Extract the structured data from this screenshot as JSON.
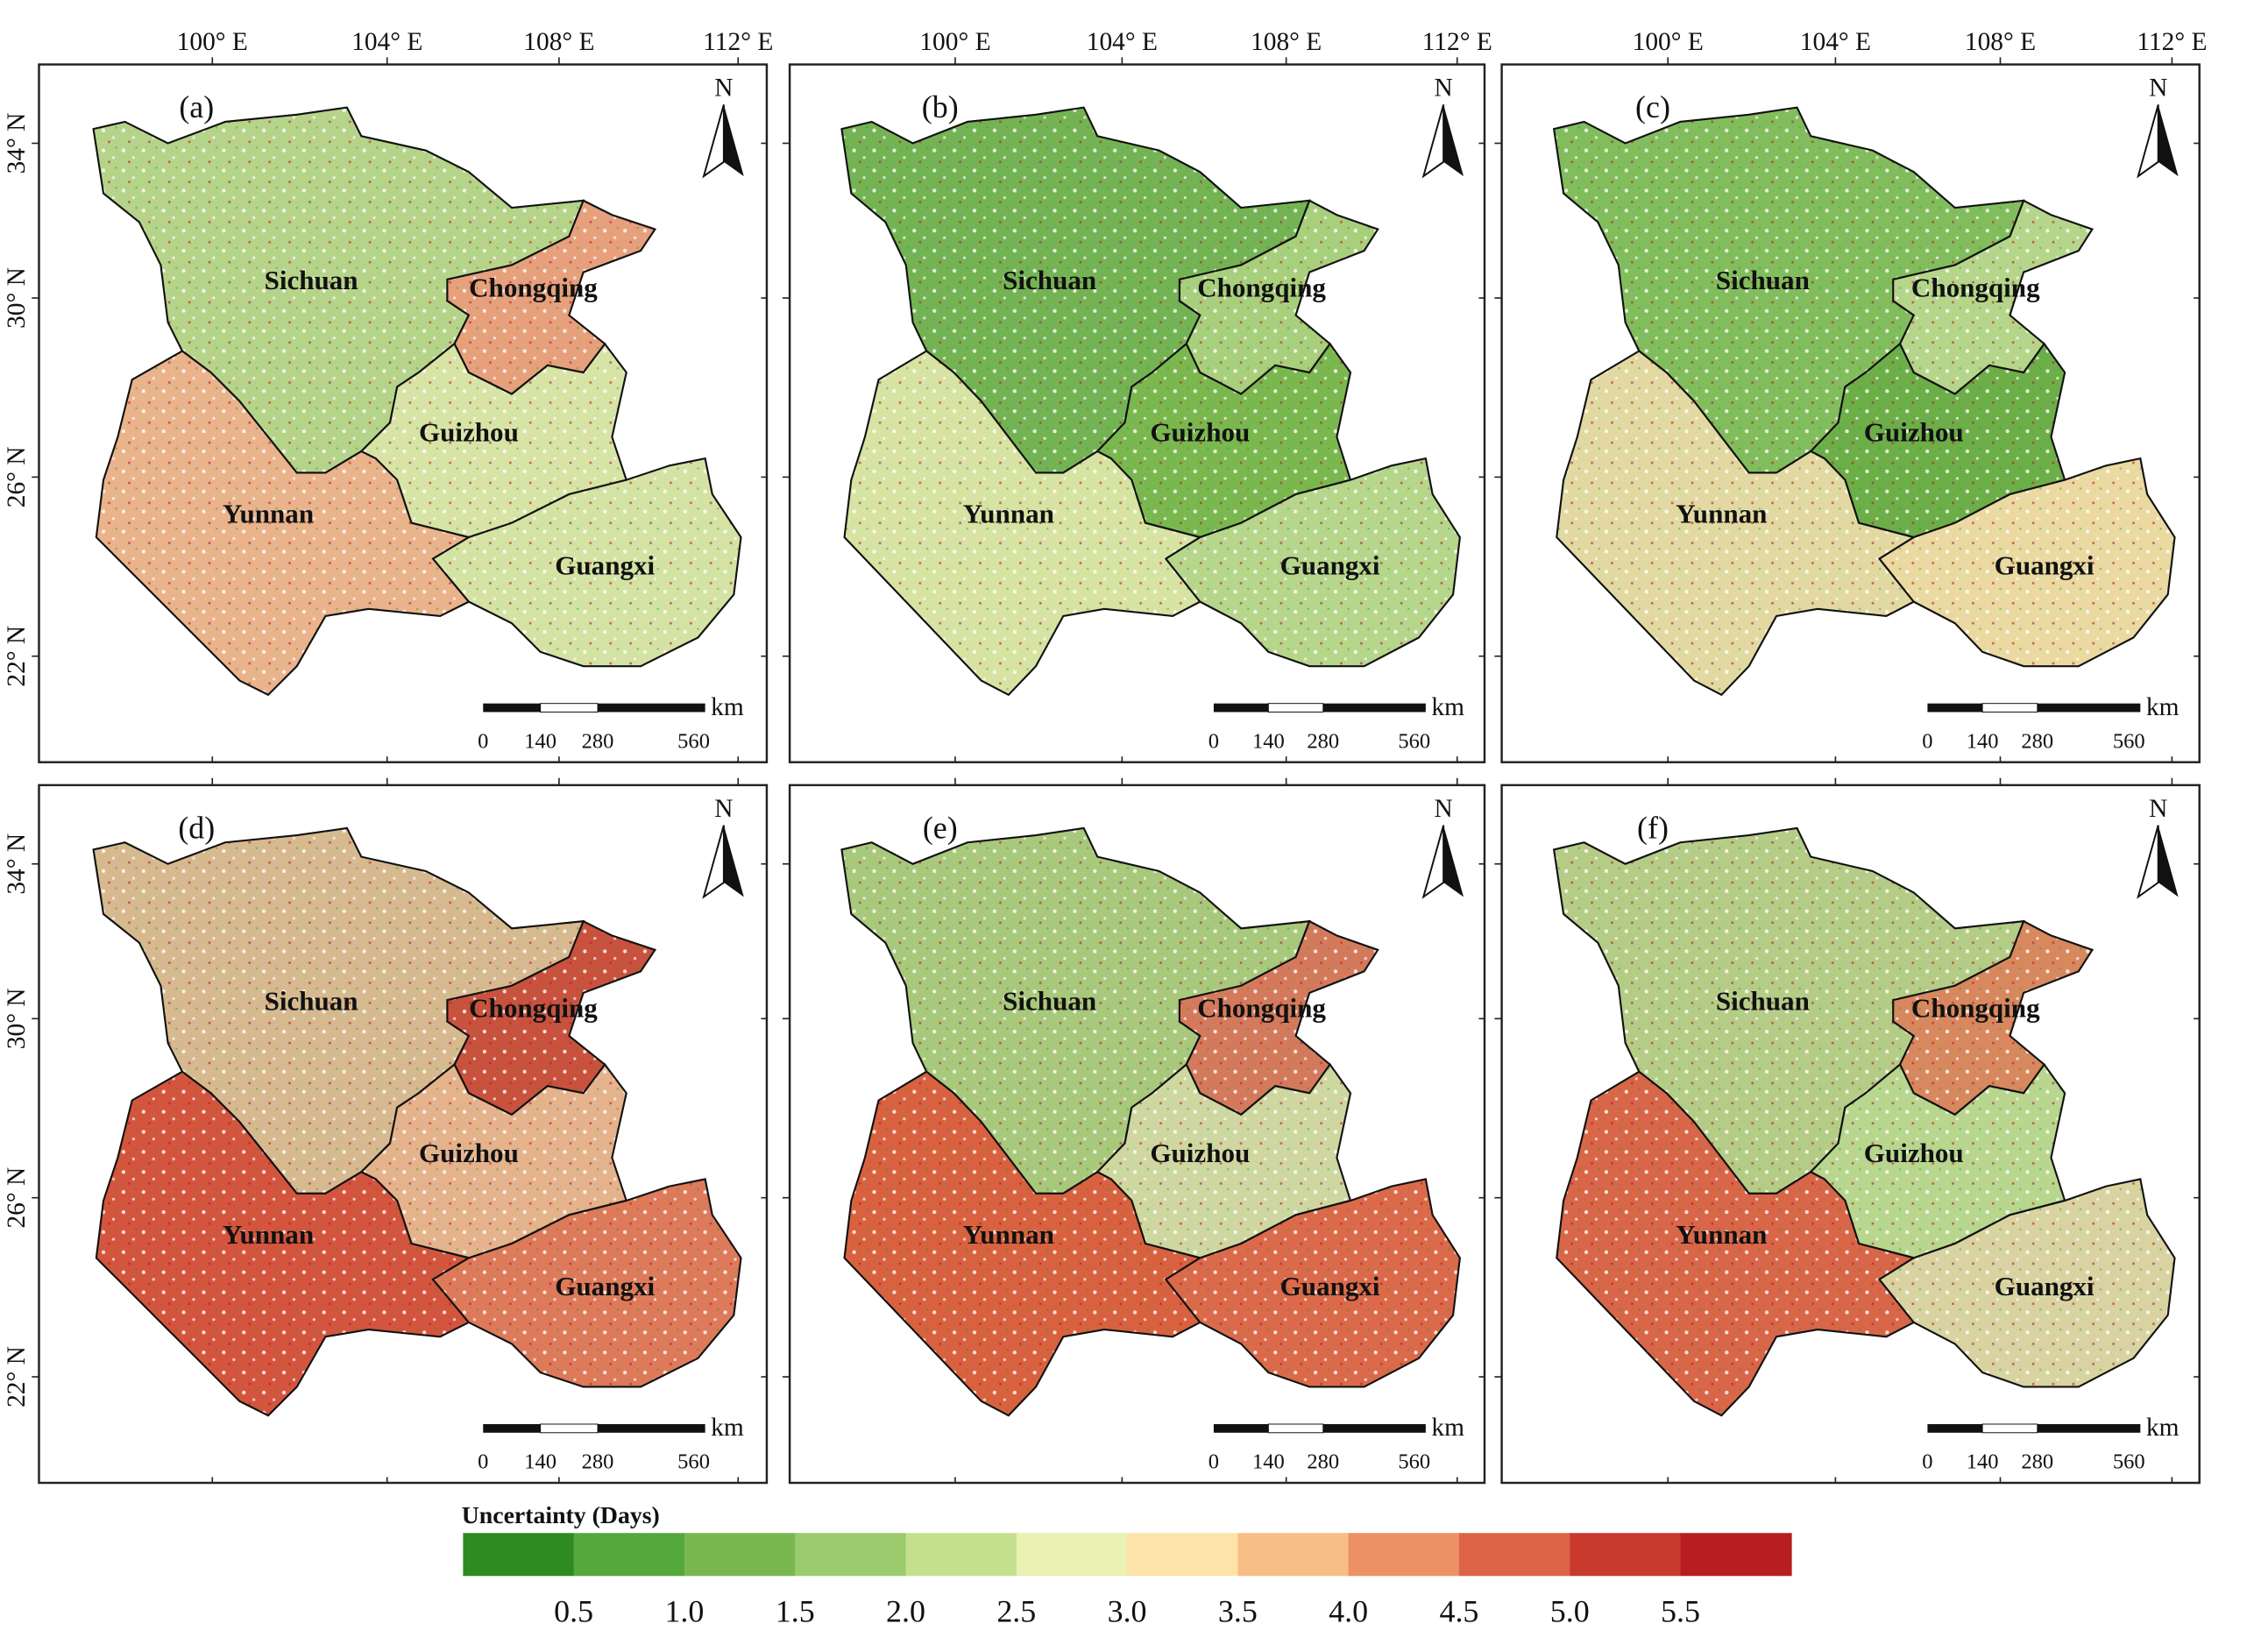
{
  "panels": [
    {
      "label": "(a)",
      "province_colors": [
        "#b5d48a",
        "#e6a07c",
        "#d8e3a6",
        "#e9b38c",
        "#d4e2a4"
      ]
    },
    {
      "label": "(b)",
      "province_colors": [
        "#74b354",
        "#a8cf7c",
        "#7ab84f",
        "#d7e3a2",
        "#b6d68c"
      ]
    },
    {
      "label": "(c)",
      "province_colors": [
        "#82bd5d",
        "#b5d68a",
        "#6cae48",
        "#e2d9a2",
        "#ead9a0"
      ]
    },
    {
      "label": "(d)",
      "province_colors": [
        "#d6b98e",
        "#c8523e",
        "#e4b38c",
        "#d3553e",
        "#dd7a5a"
      ]
    },
    {
      "label": "(e)",
      "province_colors": [
        "#a8c87c",
        "#d47a5c",
        "#cfd7a0",
        "#d8623f",
        "#da6a4a"
      ]
    },
    {
      "label": "(f)",
      "province_colors": [
        "#b5cc86",
        "#d8885e",
        "#b8d68e",
        "#d86648",
        "#d8d3a0"
      ]
    }
  ],
  "provinces": [
    "Sichuan",
    "Chongqing",
    "Guizhou",
    "Yunnan",
    "Guangxi"
  ],
  "lon_ticks": [
    "100° E",
    "104° E",
    "108° E",
    "112° E"
  ],
  "lat_ticks": [
    "34° N",
    "30° N",
    "26° N",
    "22° N"
  ],
  "north": "N",
  "scale_bar": {
    "unit": "km",
    "labels": [
      "0",
      "140",
      "280",
      "560"
    ]
  },
  "legend": {
    "title": "Uncertainty (Days)",
    "colors": [
      "#2e8b22",
      "#55a83c",
      "#7ab84f",
      "#9ccb6e",
      "#c4e08f",
      "#eaf1b3",
      "#fde3a8",
      "#f7be87",
      "#ec9066",
      "#dd6447",
      "#c83a2e",
      "#b81d1f"
    ],
    "labels": [
      "0.5",
      "1.0",
      "1.5",
      "2.0",
      "2.5",
      "3.0",
      "3.5",
      "4.0",
      "4.5",
      "5.0",
      "5.5"
    ]
  }
}
